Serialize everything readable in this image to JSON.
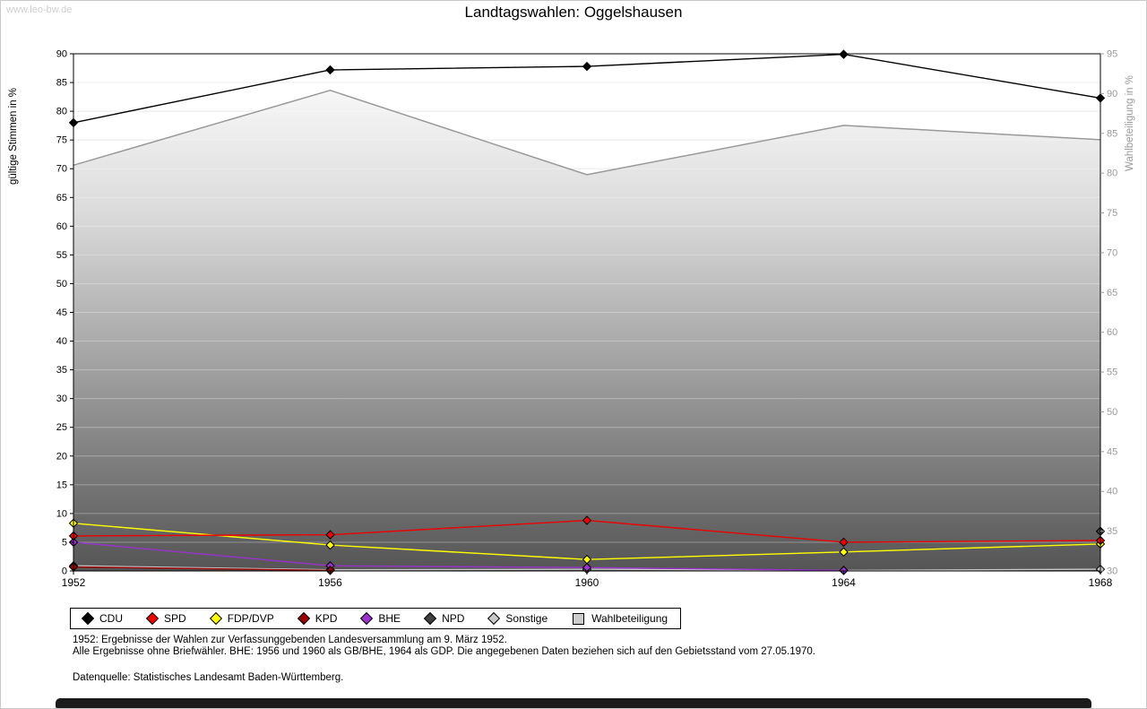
{
  "watermark": "www.leo-bw.de",
  "title": "Landtagswahlen: Oggelshausen",
  "chart_data": {
    "type": "line",
    "x": [
      1952,
      1956,
      1960,
      1964,
      1968
    ],
    "left_axis": {
      "label": "gültige Stimmen in %",
      "min": 0,
      "max": 90,
      "step": 5
    },
    "right_axis": {
      "label": "Wahlbeteiligung in %",
      "min": 30,
      "max": 95,
      "step": 5
    },
    "grid": "horizontal",
    "legend_position": "bottom",
    "series": [
      {
        "name": "CDU",
        "color": "#000000",
        "marker": "diamond",
        "axis": "left",
        "values": [
          78.0,
          87.2,
          87.8,
          89.9,
          82.3
        ]
      },
      {
        "name": "SPD",
        "color": "#ee0000",
        "marker": "diamond",
        "axis": "left",
        "values": [
          6.1,
          6.3,
          8.8,
          5.0,
          5.3
        ]
      },
      {
        "name": "FDP/DVP",
        "color": "#ffff00",
        "marker": "diamond",
        "axis": "left",
        "values": [
          8.3,
          4.5,
          2.0,
          3.3,
          4.7
        ]
      },
      {
        "name": "KPD",
        "color": "#990000",
        "marker": "diamond",
        "axis": "left",
        "values": [
          0.7,
          0.1,
          null,
          null,
          null
        ]
      },
      {
        "name": "BHE",
        "color": "#9933cc",
        "marker": "diamond",
        "axis": "left",
        "values": [
          5.0,
          0.9,
          0.6,
          0.1,
          null
        ]
      },
      {
        "name": "NPD",
        "color": "#404040",
        "marker": "diamond",
        "axis": "left",
        "values": [
          null,
          null,
          null,
          null,
          6.9
        ]
      },
      {
        "name": "Sonstige",
        "color": "#c8c8c8",
        "marker": "diamond",
        "axis": "left",
        "values": [
          0.9,
          0.2,
          0.3,
          0.1,
          0.3
        ]
      },
      {
        "name": "Wahlbeteiligung",
        "color": "#999999",
        "marker": "square",
        "axis": "right",
        "type": "area",
        "values": [
          81.0,
          90.4,
          79.8,
          86.0,
          84.2
        ]
      }
    ]
  },
  "footnotes": [
    "1952: Ergebnisse der Wahlen zur Verfassunggebenden Landesversammlung am 9. März 1952.",
    "Alle Ergebnisse ohne Briefwähler. BHE: 1956 und 1960 als GB/BHE, 1964 als GDP. Die angegebenen Daten beziehen sich auf den Gebietsstand vom 27.05.1970.",
    "Datenquelle: Statistisches Landesamt Baden-Württemberg."
  ]
}
